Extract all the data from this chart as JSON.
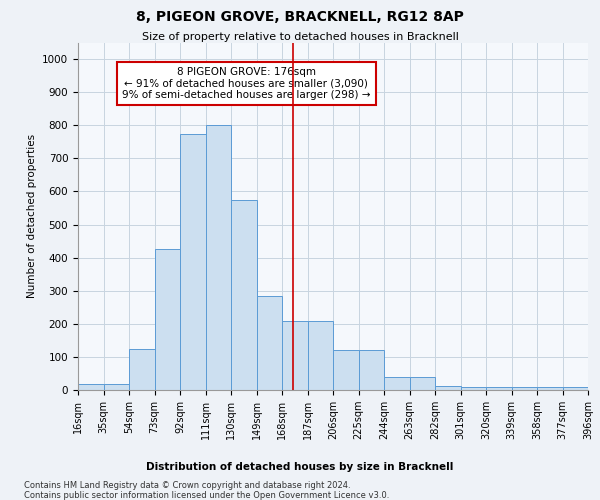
{
  "title": "8, PIGEON GROVE, BRACKNELL, RG12 8AP",
  "subtitle": "Size of property relative to detached houses in Bracknell",
  "xlabel": "Distribution of detached houses by size in Bracknell",
  "ylabel": "Number of detached properties",
  "footer1": "Contains HM Land Registry data © Crown copyright and database right 2024.",
  "footer2": "Contains public sector information licensed under the Open Government Licence v3.0.",
  "bar_color": "#ccdff0",
  "bar_edge_color": "#5b9bd5",
  "annotation_line1": "8 PIGEON GROVE: 176sqm",
  "annotation_line2": "← 91% of detached houses are smaller (3,090)",
  "annotation_line3": "9% of semi-detached houses are larger (298) →",
  "vline_x": 176,
  "vline_color": "#cc0000",
  "bin_edges": [
    16,
    35,
    54,
    73,
    92,
    111,
    130,
    149,
    168,
    187,
    206,
    225,
    244,
    263,
    282,
    301,
    320,
    339,
    358,
    377,
    396
  ],
  "bar_heights": [
    18,
    18,
    125,
    425,
    775,
    800,
    575,
    285,
    210,
    210,
    120,
    120,
    40,
    40,
    12,
    10,
    8,
    8,
    8,
    8
  ],
  "ylim": [
    0,
    1050
  ],
  "yticks": [
    0,
    100,
    200,
    300,
    400,
    500,
    600,
    700,
    800,
    900,
    1000
  ],
  "background_color": "#eef2f7",
  "plot_bg_color": "#f5f8fc",
  "grid_color": "#c8d4e0"
}
